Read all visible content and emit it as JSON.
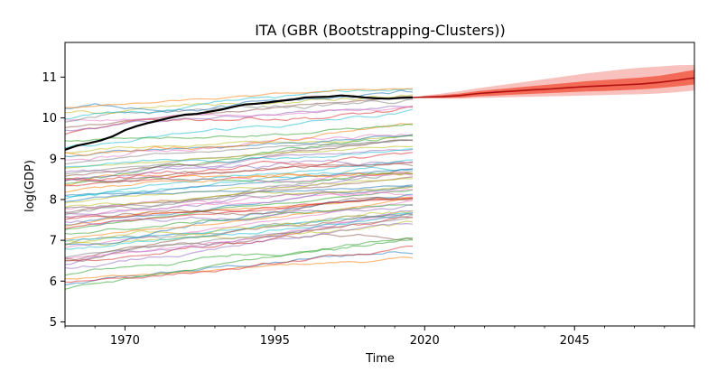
{
  "chart_data": {
    "type": "line",
    "title": "ITA (GBR (Bootstrapping-Clusters))",
    "xlabel": "Time",
    "ylabel": "log(GDP)",
    "xlim": [
      1960,
      2065
    ],
    "ylim": [
      4.9,
      11.85
    ],
    "x_ticks": [
      1970,
      1995,
      2020,
      2045
    ],
    "y_ticks": [
      5,
      6,
      7,
      8,
      9,
      10,
      11
    ],
    "grid": false,
    "legend": "none",
    "historical_years": [
      1960,
      2018
    ],
    "background_series_count": 70,
    "background_series_start_levels_approx": [
      5.8,
      6.0,
      6.2,
      6.4,
      6.5,
      6.7,
      6.8,
      6.9,
      7.0,
      7.1,
      7.2,
      7.3,
      7.4,
      7.5,
      7.6,
      7.7,
      7.8,
      7.9,
      8.0,
      8.1,
      8.2,
      8.3,
      8.4,
      8.5,
      8.6,
      8.7,
      8.8,
      8.9,
      9.0,
      9.1,
      9.2,
      9.3,
      9.4,
      9.5,
      9.6,
      9.7,
      9.8,
      9.9,
      10.0,
      10.1,
      10.2,
      10.3
    ],
    "series": [
      {
        "name": "ITA",
        "color": "#000000",
        "x": [
          1960,
          1962,
          1964,
          1966,
          1968,
          1970,
          1972,
          1974,
          1976,
          1978,
          1980,
          1982,
          1984,
          1986,
          1988,
          1990,
          1992,
          1994,
          1996,
          1998,
          2000,
          2002,
          2004,
          2006,
          2008,
          2010,
          2012,
          2014,
          2016,
          2018
        ],
        "y": [
          9.22,
          9.32,
          9.38,
          9.45,
          9.55,
          9.7,
          9.8,
          9.88,
          9.95,
          10.02,
          10.08,
          10.1,
          10.15,
          10.2,
          10.27,
          10.33,
          10.35,
          10.38,
          10.42,
          10.45,
          10.5,
          10.51,
          10.52,
          10.55,
          10.53,
          10.5,
          10.48,
          10.47,
          10.49,
          10.5
        ]
      },
      {
        "name": "forecast-median",
        "color": "#b01010",
        "x": [
          2018,
          2020,
          2023,
          2026,
          2029,
          2032,
          2035,
          2038,
          2041,
          2044,
          2047,
          2050,
          2053,
          2056,
          2059,
          2062,
          2065
        ],
        "y": [
          10.5,
          10.51,
          10.52,
          10.55,
          10.6,
          10.63,
          10.66,
          10.69,
          10.71,
          10.74,
          10.77,
          10.79,
          10.81,
          10.83,
          10.87,
          10.92,
          10.98
        ],
        "band_inner_lower": [
          10.5,
          10.49,
          10.49,
          10.5,
          10.53,
          10.55,
          10.57,
          10.59,
          10.61,
          10.63,
          10.65,
          10.66,
          10.68,
          10.7,
          10.73,
          10.77,
          10.82
        ],
        "band_inner_upper": [
          10.5,
          10.53,
          10.56,
          10.6,
          10.66,
          10.7,
          10.74,
          10.78,
          10.82,
          10.86,
          10.9,
          10.93,
          10.96,
          10.99,
          11.03,
          11.1,
          11.18
        ],
        "band_outer_lower": [
          10.5,
          10.48,
          10.47,
          10.47,
          10.49,
          10.5,
          10.51,
          10.52,
          10.53,
          10.54,
          10.55,
          10.56,
          10.57,
          10.58,
          10.6,
          10.63,
          10.67
        ],
        "band_outer_upper": [
          10.5,
          10.55,
          10.6,
          10.66,
          10.73,
          10.79,
          10.85,
          10.91,
          10.97,
          11.03,
          11.09,
          11.14,
          11.19,
          11.23,
          11.26,
          11.29,
          11.3
        ]
      }
    ]
  }
}
